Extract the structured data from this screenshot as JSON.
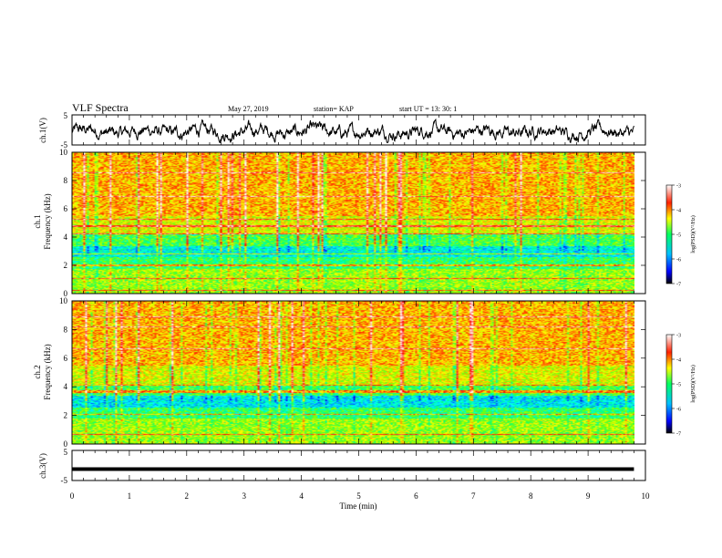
{
  "header": {
    "title": "VLF Spectra",
    "date": "May 27, 2019",
    "station": "station= KAP",
    "start": "start  UT  =   13: 30: 1"
  },
  "chart_data": [
    {
      "type": "line",
      "name": "ch1-waveform",
      "ylabel": "ch.1(V)",
      "ylim": [
        -5,
        5
      ],
      "yticks": [
        "5",
        "-5"
      ],
      "xlim": [
        0,
        10
      ],
      "x_end": 9.8,
      "color": "#000000"
    },
    {
      "type": "heatmap",
      "name": "ch1-spectrogram",
      "ylabel": "ch.1\nFrequency (kHz)",
      "ylim": [
        0,
        10
      ],
      "yticks": [
        "0",
        "2",
        "4",
        "6",
        "8",
        "10"
      ],
      "xlim": [
        0,
        10
      ],
      "x_end": 9.8,
      "colorbar": {
        "label": "log(PSD)(V²/Hz)",
        "range": [
          -7,
          -3
        ],
        "ticks": [
          "-3",
          "-4",
          "-5",
          "-6",
          "-7"
        ]
      }
    },
    {
      "type": "heatmap",
      "name": "ch2-spectrogram",
      "ylabel": "ch.2\nFrequency (kHz)",
      "ylim": [
        0,
        10
      ],
      "yticks": [
        "0",
        "2",
        "4",
        "6",
        "8",
        "10"
      ],
      "xlim": [
        0,
        10
      ],
      "x_end": 9.8,
      "colorbar": {
        "label": "log(PSD)(V²/Hz)",
        "range": [
          -7,
          -3
        ],
        "ticks": [
          "-3",
          "-4",
          "-5",
          "-6",
          "-7"
        ]
      }
    },
    {
      "type": "line",
      "name": "ch3-waveform",
      "ylabel": "ch.3(V)",
      "ylim": [
        -5,
        5
      ],
      "yticks": [
        "5",
        "-5"
      ],
      "xlim": [
        0,
        10
      ],
      "x_end": 9.8,
      "value": -1.2,
      "color": "#000000"
    }
  ],
  "xaxis": {
    "label": "Time  (min)",
    "ticks": [
      "0",
      "1",
      "2",
      "3",
      "4",
      "5",
      "6",
      "7",
      "8",
      "9",
      "10"
    ]
  },
  "colormap": [
    "#000080",
    "#0000ff",
    "#0080ff",
    "#00ffff",
    "#00ff80",
    "#80ff00",
    "#ffff00",
    "#ff8000",
    "#ff0000",
    "#ff8080",
    "#ffffff"
  ]
}
